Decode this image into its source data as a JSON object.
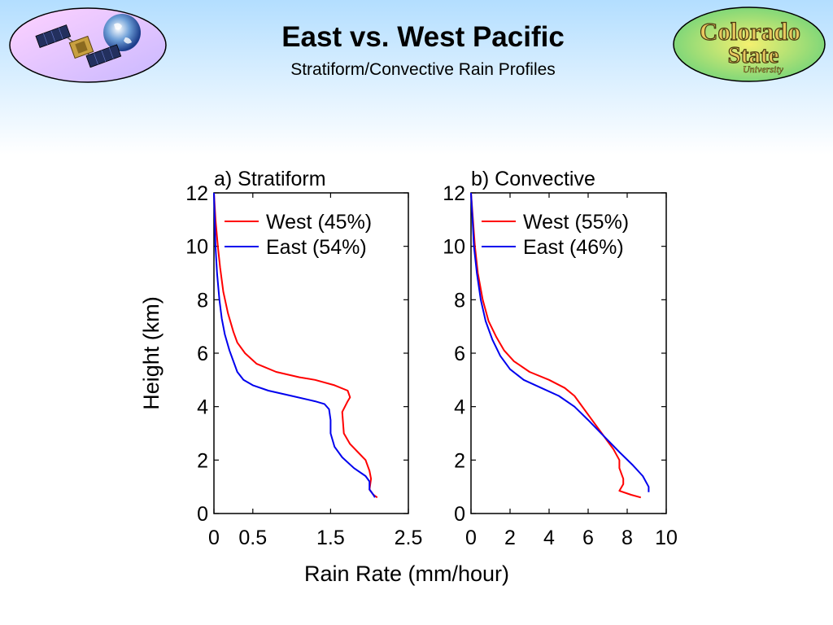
{
  "header": {
    "title": "East vs. West Pacific",
    "subtitle": "Stratiform/Convective Rain Profiles"
  },
  "logos": {
    "left": {
      "icon": "satellite-earth-icon"
    },
    "right": {
      "icon": "university-logo",
      "line1": "Colorado",
      "line2": "State",
      "line3": "University"
    }
  },
  "colors": {
    "west": "#ff0000",
    "east": "#0000ee"
  },
  "chart_data": [
    {
      "type": "line",
      "title": "a) Stratiform",
      "xlabel": "Rain Rate (mm/hour)",
      "ylabel": "Height (km)",
      "xlim": [
        0,
        2.5
      ],
      "ylim": [
        0,
        12
      ],
      "xticks": [
        0,
        0.5,
        1.5,
        2.5
      ],
      "xtick_labels": [
        "0",
        "0.5",
        "1.5",
        "2.5"
      ],
      "yticks": [
        0,
        2,
        4,
        6,
        8,
        10,
        12
      ],
      "yticks_labels": [
        "0",
        "2",
        "4",
        "6",
        "8",
        "10",
        "12"
      ],
      "grid": false,
      "legend": "top-right",
      "series": [
        {
          "name": "West (45%)",
          "color": "#ff0000",
          "x": [
            0.0,
            0.02,
            0.05,
            0.08,
            0.12,
            0.18,
            0.25,
            0.3,
            0.4,
            0.55,
            0.8,
            1.1,
            1.3,
            1.55,
            1.72,
            1.75,
            1.72,
            1.65,
            1.67,
            1.75,
            1.85,
            1.95,
            2.0,
            2.02,
            2.0,
            2.05,
            2.1
          ],
          "y": [
            12.0,
            11.0,
            10.0,
            9.2,
            8.3,
            7.5,
            6.8,
            6.4,
            6.0,
            5.6,
            5.3,
            5.1,
            5.0,
            4.8,
            4.6,
            4.35,
            4.2,
            3.8,
            3.0,
            2.6,
            2.3,
            2.0,
            1.6,
            1.3,
            0.9,
            0.7,
            0.6
          ]
        },
        {
          "name": "East (54%)",
          "color": "#0000ee",
          "x": [
            0.0,
            0.01,
            0.02,
            0.04,
            0.07,
            0.1,
            0.14,
            0.2,
            0.25,
            0.3,
            0.38,
            0.5,
            0.7,
            1.0,
            1.3,
            1.42,
            1.48,
            1.5,
            1.5,
            1.55,
            1.65,
            1.8,
            1.95,
            2.0,
            2.0,
            2.05,
            2.07
          ],
          "y": [
            12.0,
            11.0,
            10.0,
            9.0,
            8.0,
            7.3,
            6.7,
            6.1,
            5.7,
            5.3,
            5.0,
            4.8,
            4.6,
            4.4,
            4.2,
            4.1,
            3.9,
            3.5,
            3.0,
            2.5,
            2.1,
            1.7,
            1.4,
            1.2,
            0.9,
            0.7,
            0.6
          ]
        }
      ]
    },
    {
      "type": "line",
      "title": "b) Convective",
      "xlabel": "Rain Rate (mm/hour)",
      "ylabel": "Height (km)",
      "xlim": [
        0,
        10
      ],
      "ylim": [
        0,
        12
      ],
      "xticks": [
        0,
        2,
        4,
        6,
        8,
        10
      ],
      "xtick_labels": [
        "0",
        "2",
        "4",
        "6",
        "8",
        "10"
      ],
      "yticks": [
        0,
        2,
        4,
        6,
        8,
        10,
        12
      ],
      "yticks_labels": [
        "0",
        "2",
        "4",
        "6",
        "8",
        "10",
        "12"
      ],
      "grid": false,
      "legend": "top-right",
      "series": [
        {
          "name": "West (55%)",
          "color": "#ff0000",
          "x": [
            0.0,
            0.1,
            0.2,
            0.35,
            0.6,
            0.9,
            1.3,
            1.7,
            2.2,
            3.0,
            4.0,
            4.8,
            5.3,
            5.6,
            6.1,
            6.7,
            7.3,
            7.6,
            7.6,
            7.7,
            7.8,
            7.8,
            7.6,
            8.2,
            8.7
          ],
          "y": [
            12.0,
            11.0,
            10.0,
            9.0,
            8.0,
            7.2,
            6.6,
            6.1,
            5.7,
            5.3,
            5.0,
            4.7,
            4.4,
            4.1,
            3.6,
            3.0,
            2.4,
            2.0,
            1.7,
            1.5,
            1.3,
            1.1,
            0.85,
            0.7,
            0.6
          ]
        },
        {
          "name": "East (46%)",
          "color": "#0000ee",
          "x": [
            0.0,
            0.08,
            0.15,
            0.3,
            0.5,
            0.75,
            1.1,
            1.5,
            2.0,
            2.7,
            3.6,
            4.5,
            5.3,
            6.0,
            6.8,
            7.6,
            8.3,
            8.8,
            9.1,
            9.1
          ],
          "y": [
            12.0,
            11.0,
            10.0,
            9.0,
            8.0,
            7.2,
            6.5,
            5.9,
            5.4,
            5.0,
            4.7,
            4.4,
            4.0,
            3.5,
            2.9,
            2.3,
            1.8,
            1.4,
            1.0,
            0.8
          ]
        }
      ]
    }
  ]
}
